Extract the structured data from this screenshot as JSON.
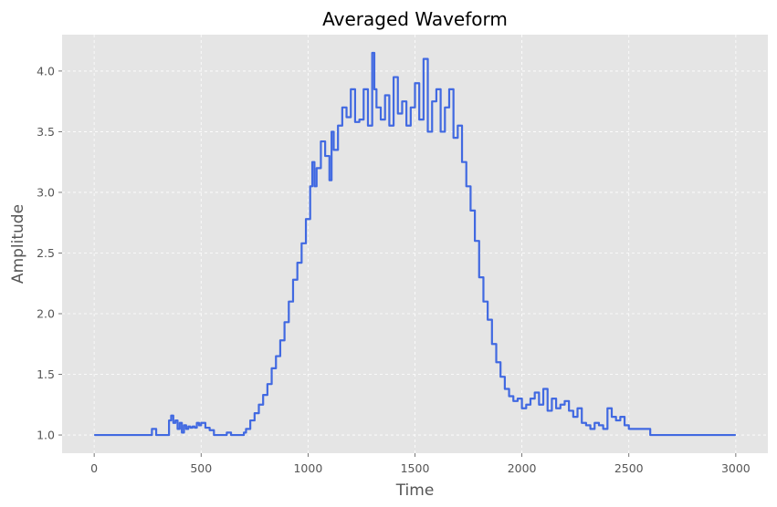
{
  "chart_data": {
    "type": "line",
    "title": "Averaged Waveform",
    "xlabel": "Time",
    "ylabel": "Amplitude",
    "xlim": [
      -150,
      3150
    ],
    "ylim": [
      0.85,
      4.3
    ],
    "xticks": [
      0,
      500,
      1000,
      1500,
      2000,
      2500,
      3000
    ],
    "yticks": [
      1.0,
      1.5,
      2.0,
      2.5,
      3.0,
      3.5,
      4.0
    ],
    "ytick_labels": [
      "1.0",
      "1.5",
      "2.0",
      "2.5",
      "3.0",
      "3.5",
      "4.0"
    ],
    "grid": true,
    "series": [
      {
        "color": "#4169e1",
        "x": [
          0,
          150,
          250,
          270,
          290,
          340,
          350,
          360,
          370,
          380,
          390,
          400,
          410,
          420,
          430,
          440,
          450,
          460,
          470,
          480,
          490,
          500,
          520,
          540,
          560,
          580,
          600,
          620,
          640,
          660,
          680,
          700,
          710,
          730,
          750,
          770,
          790,
          810,
          830,
          850,
          870,
          890,
          910,
          930,
          950,
          970,
          990,
          1010,
          1020,
          1030,
          1040,
          1060,
          1080,
          1100,
          1110,
          1120,
          1140,
          1160,
          1180,
          1200,
          1220,
          1240,
          1260,
          1280,
          1300,
          1310,
          1320,
          1340,
          1360,
          1380,
          1400,
          1420,
          1440,
          1460,
          1480,
          1500,
          1520,
          1540,
          1560,
          1580,
          1600,
          1620,
          1640,
          1660,
          1680,
          1700,
          1720,
          1740,
          1760,
          1780,
          1800,
          1820,
          1840,
          1860,
          1880,
          1900,
          1920,
          1940,
          1960,
          1980,
          2000,
          2020,
          2040,
          2060,
          2080,
          2100,
          2120,
          2140,
          2160,
          2180,
          2200,
          2220,
          2240,
          2260,
          2280,
          2300,
          2320,
          2340,
          2360,
          2380,
          2400,
          2420,
          2440,
          2460,
          2480,
          2500,
          2520,
          2540,
          2560,
          2580,
          2600,
          2700,
          2800,
          3000
        ],
        "y": [
          1.0,
          1.0,
          1.0,
          1.05,
          1.0,
          1.0,
          1.12,
          1.16,
          1.1,
          1.12,
          1.05,
          1.1,
          1.02,
          1.08,
          1.05,
          1.07,
          1.06,
          1.07,
          1.06,
          1.1,
          1.08,
          1.1,
          1.06,
          1.04,
          1.0,
          1.0,
          1.0,
          1.02,
          1.0,
          1.0,
          1.0,
          1.02,
          1.05,
          1.12,
          1.18,
          1.25,
          1.33,
          1.42,
          1.55,
          1.65,
          1.78,
          1.93,
          2.1,
          2.28,
          2.42,
          2.58,
          2.78,
          3.05,
          3.25,
          3.05,
          3.2,
          3.42,
          3.3,
          3.1,
          3.5,
          3.35,
          3.55,
          3.7,
          3.62,
          3.85,
          3.58,
          3.6,
          3.85,
          3.55,
          4.15,
          3.85,
          3.7,
          3.6,
          3.8,
          3.55,
          3.95,
          3.65,
          3.75,
          3.55,
          3.7,
          3.9,
          3.6,
          4.1,
          3.5,
          3.75,
          3.85,
          3.5,
          3.7,
          3.85,
          3.45,
          3.55,
          3.25,
          3.05,
          2.85,
          2.6,
          2.3,
          2.1,
          1.95,
          1.75,
          1.6,
          1.48,
          1.38,
          1.32,
          1.28,
          1.3,
          1.22,
          1.25,
          1.3,
          1.35,
          1.25,
          1.38,
          1.2,
          1.3,
          1.22,
          1.25,
          1.28,
          1.2,
          1.15,
          1.22,
          1.1,
          1.08,
          1.05,
          1.1,
          1.08,
          1.05,
          1.22,
          1.15,
          1.12,
          1.15,
          1.08,
          1.05,
          1.05,
          1.05,
          1.05,
          1.05,
          1.0,
          1.0,
          1.0,
          1.0
        ]
      }
    ]
  }
}
